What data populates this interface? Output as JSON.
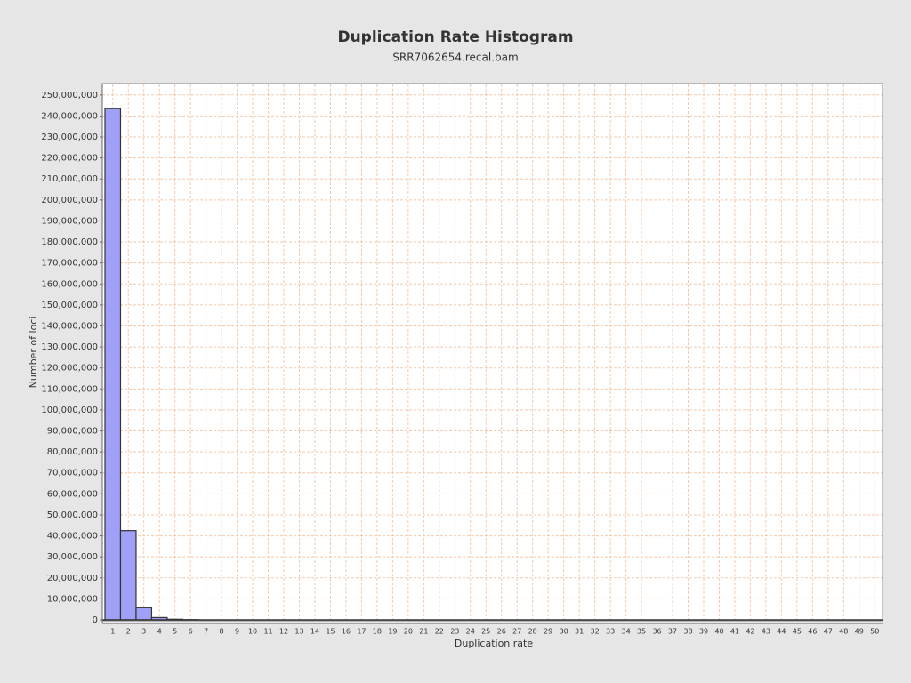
{
  "chart_data": {
    "type": "bar",
    "title": "Duplication Rate Histogram",
    "subtitle": "SRR7062654.recal.bam",
    "x_label": "Duplication rate",
    "y_label": "Number of loci",
    "categories": [
      "1",
      "2",
      "3",
      "4",
      "5",
      "6",
      "7",
      "8",
      "9",
      "10",
      "11",
      "12",
      "13",
      "14",
      "15",
      "16",
      "17",
      "18",
      "19",
      "20",
      "21",
      "22",
      "23",
      "24",
      "25",
      "26",
      "27",
      "28",
      "29",
      "30",
      "31",
      "32",
      "33",
      "34",
      "35",
      "36",
      "37",
      "38",
      "39",
      "40",
      "41",
      "42",
      "43",
      "44",
      "45",
      "46",
      "47",
      "48",
      "49",
      "50"
    ],
    "values": [
      243500000,
      42500000,
      5800000,
      1100000,
      300000,
      100000,
      0,
      0,
      0,
      0,
      0,
      0,
      0,
      0,
      0,
      0,
      0,
      0,
      0,
      0,
      0,
      0,
      0,
      0,
      0,
      0,
      0,
      0,
      0,
      0,
      0,
      0,
      0,
      0,
      0,
      0,
      0,
      0,
      0,
      0,
      0,
      0,
      0,
      0,
      0,
      0,
      0,
      0,
      0,
      0
    ],
    "color": "#a0a0f8",
    "ylim": [
      0,
      255000000
    ],
    "yticks": [
      0,
      {
        "value": 10000000,
        "label": "10,000,000"
      },
      {
        "value": 20000000,
        "label": "20,000,000"
      },
      {
        "value": 30000000,
        "label": "30,000,000"
      },
      {
        "value": 40000000,
        "label": "40,000,000"
      },
      {
        "value": 50000000,
        "label": "50,000,000"
      },
      {
        "value": 60000000,
        "label": "60,000,000"
      },
      {
        "value": 70000000,
        "label": "70,000,000"
      },
      {
        "value": 80000000,
        "label": "80,000,000"
      },
      {
        "value": 90000000,
        "label": "90,000,000"
      },
      {
        "value": 100000000,
        "label": "100,000,000"
      },
      {
        "value": 110000000,
        "label": "110,000,000"
      },
      {
        "value": 120000000,
        "label": "120,000,000"
      },
      {
        "value": 130000000,
        "label": "130,000,000"
      },
      {
        "value": 140000000,
        "label": "140,000,000"
      },
      {
        "value": 150000000,
        "label": "150,000,000"
      },
      {
        "value": 160000000,
        "label": "160,000,000"
      },
      {
        "value": 170000000,
        "label": "170,000,000"
      },
      {
        "value": 180000000,
        "label": "180,000,000"
      },
      {
        "value": 190000000,
        "label": "190,000,000"
      },
      {
        "value": 200000000,
        "label": "200,000,000"
      },
      {
        "value": 210000000,
        "label": "210,000,000"
      },
      {
        "value": 220000000,
        "label": "220,000,000"
      },
      {
        "value": 230000000,
        "label": "230,000,000"
      },
      {
        "value": 240000000,
        "label": "240,000,000"
      },
      {
        "value": 250000000,
        "label": "250,000,000"
      }
    ],
    "grid": true
  }
}
